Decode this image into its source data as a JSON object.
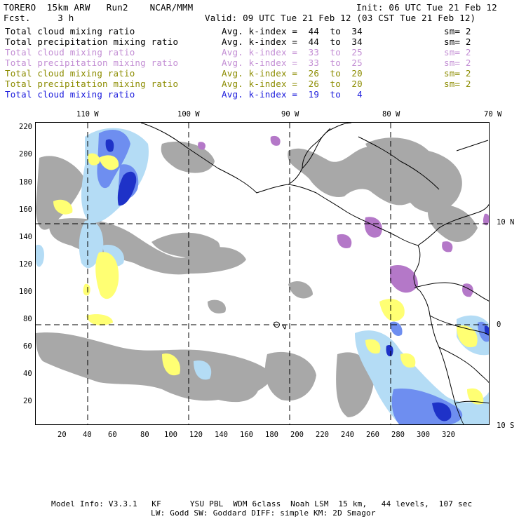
{
  "header": {
    "title_left": "TORERO  15km ARW   Run2    NCAR/MMM",
    "init": "Init: 06 UTC Tue 21 Feb 12",
    "fcst": "Fcst.     3 h",
    "valid": "Valid: 09 UTC Tue 21 Feb 12 (03 CST Tue 21 Feb 12)"
  },
  "legend": [
    {
      "field": "Total cloud mixing ratio",
      "kindex": "Avg. k-index =  44  to  34",
      "sm": "sm= 2",
      "color": "#000000"
    },
    {
      "field": "Total precipitation mixing ratio",
      "kindex": "Avg. k-index =  44  to  34",
      "sm": "sm= 2",
      "color": "#000000"
    },
    {
      "field": "Total cloud mixing ratio",
      "kindex": "Avg. k-index =  33  to  25",
      "sm": "sm= 2",
      "color": "#c38ed4"
    },
    {
      "field": "Total precipitation mixing ratio",
      "kindex": "Avg. k-index =  33  to  25",
      "sm": "sm= 2",
      "color": "#c38ed4"
    },
    {
      "field": "Total cloud mixing ratio",
      "kindex": "Avg. k-index =  26  to  20",
      "sm": "sm= 2",
      "color": "#8c8c00"
    },
    {
      "field": "Total precipitation mixing ratio",
      "kindex": "Avg. k-index =  26  to  20",
      "sm": "sm= 2",
      "color": "#8c8c00"
    },
    {
      "field": "Total cloud mixing ratio",
      "kindex": "Avg. k-index =  19  to   4",
      "sm": "",
      "color": "#1a1adc"
    }
  ],
  "axes": {
    "top_lon": [
      "110 W",
      "100 W",
      "90 W",
      "80 W",
      "70 W"
    ],
    "right_lat": [
      "10 N",
      "0",
      "10 S"
    ],
    "left_ticks": [
      "220",
      "200",
      "180",
      "160",
      "140",
      "120",
      "100",
      "80",
      "60",
      "40",
      "20"
    ],
    "bottom_ticks": [
      "20",
      "40",
      "60",
      "80",
      "100",
      "120",
      "140",
      "160",
      "180",
      "200",
      "220",
      "240",
      "260",
      "280",
      "300",
      "320"
    ]
  },
  "colors": {
    "gray_cloud": "#a8a8a8",
    "light_blue": "#b4dcf5",
    "mid_blue": "#6e8ef0",
    "dark_blue": "#1e32c8",
    "yellow": "#ffff73",
    "purple": "#b478c8"
  },
  "footer": {
    "line1": "Model Info: V3.3.1   KF      YSU PBL  WDM 6class  Noah LSM  15 km,   44 levels,  107 sec",
    "line2": "LW: Godd SW: Goddard DIFF: simple KM: 2D Smagor"
  }
}
